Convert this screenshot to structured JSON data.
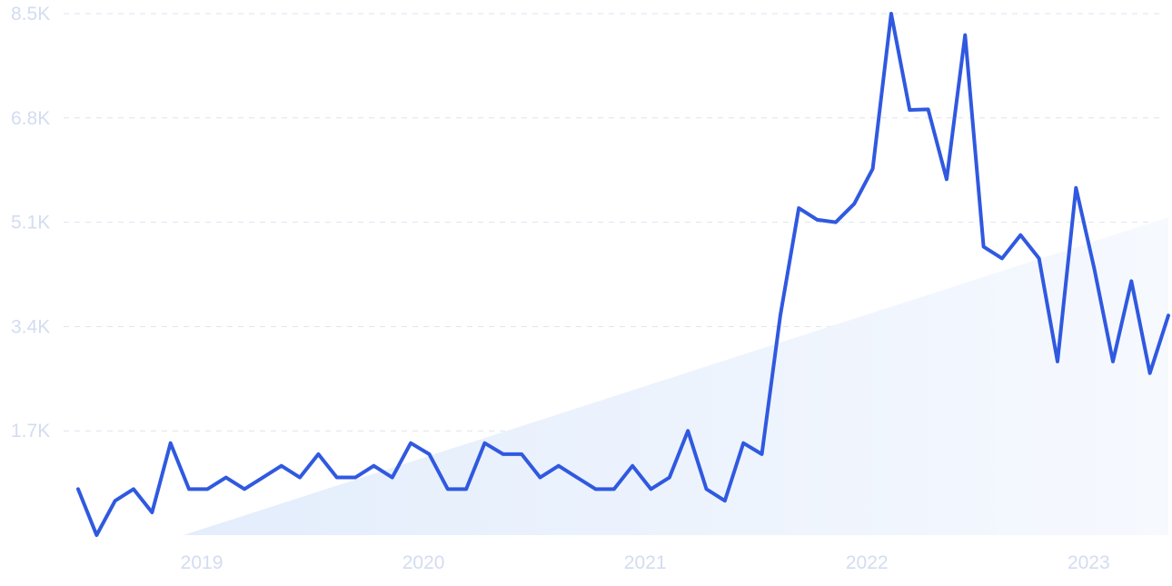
{
  "chart_data": {
    "type": "line",
    "title": "",
    "xlabel": "",
    "ylabel": "",
    "ylim": [
      0,
      8500
    ],
    "yticks": [
      {
        "value": 1700,
        "label": "1.7K"
      },
      {
        "value": 3400,
        "label": "3.4K"
      },
      {
        "value": 5100,
        "label": "5.1K"
      },
      {
        "value": 6800,
        "label": "6.8K"
      },
      {
        "value": 8500,
        "label": "8.5K"
      }
    ],
    "xticks": [
      {
        "value": "2019-01",
        "label": "2019"
      },
      {
        "value": "2020-01",
        "label": "2020"
      },
      {
        "value": "2021-01",
        "label": "2021"
      },
      {
        "value": "2022-01",
        "label": "2022"
      },
      {
        "value": "2023-01",
        "label": "2023"
      }
    ],
    "grid": true,
    "legend": "none",
    "colors": {
      "line": "#3059e0",
      "trend_fill": "#e6effd"
    },
    "series": [
      {
        "name": "",
        "x": [
          "2018-07",
          "2018-08",
          "2018-09",
          "2018-10",
          "2018-11",
          "2018-12",
          "2019-01",
          "2019-02",
          "2019-03",
          "2019-04",
          "2019-05",
          "2019-06",
          "2019-07",
          "2019-08",
          "2019-09",
          "2019-10",
          "2019-11",
          "2019-12",
          "2020-01",
          "2020-02",
          "2020-03",
          "2020-04",
          "2020-05",
          "2020-06",
          "2020-07",
          "2020-08",
          "2020-09",
          "2020-10",
          "2020-11",
          "2020-12",
          "2021-01",
          "2021-02",
          "2021-03",
          "2021-04",
          "2021-05",
          "2021-06",
          "2021-07",
          "2021-08",
          "2021-09",
          "2021-10",
          "2021-11",
          "2021-12",
          "2022-01",
          "2022-02",
          "2022-03",
          "2022-04",
          "2022-05",
          "2022-06",
          "2022-07",
          "2022-08",
          "2022-09",
          "2022-10",
          "2022-11",
          "2022-12",
          "2023-01",
          "2023-02",
          "2023-03",
          "2023-04",
          "2023-05",
          "2023-06"
        ],
        "values": [
          750,
          0,
          560,
          750,
          370,
          1500,
          750,
          750,
          940,
          750,
          940,
          1130,
          940,
          1320,
          940,
          940,
          1130,
          940,
          1500,
          1320,
          750,
          750,
          1500,
          1320,
          1320,
          940,
          1130,
          940,
          750,
          750,
          1130,
          750,
          940,
          1700,
          750,
          560,
          1500,
          1320,
          3580,
          5330,
          5140,
          5100,
          5400,
          5970,
          8500,
          6930,
          6940,
          5800,
          8150,
          4700,
          4510,
          4890,
          4510,
          2830,
          5660,
          4330,
          2830,
          4140,
          2640,
          3580
        ]
      }
    ],
    "trend": {
      "start": {
        "x": "2018-10",
        "y": 0
      },
      "end": {
        "x": "2023-06",
        "y": 5180
      }
    }
  }
}
